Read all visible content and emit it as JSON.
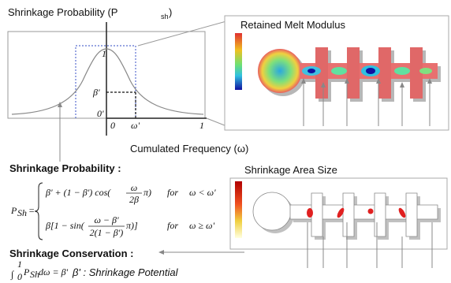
{
  "graph": {
    "title": "Shrinkage Probability (P",
    "title_sub": "sh",
    "title_close": ")",
    "y_top": "1",
    "y_beta": "β'",
    "y_zero": "0'",
    "x_zero": "0",
    "x_omega": "ω'",
    "x_one": "1",
    "x_label": "Cumulated Frequency (ω)"
  },
  "images": {
    "top_title": "Retained Melt Modulus",
    "bottom_title": "Shrinkage Area Size"
  },
  "probability": {
    "heading": "Shrinkage Probability :",
    "lhs": "P",
    "lhs_sub": "Sh",
    "eq": "=",
    "case1": {
      "expr": "β' + (1 − β') cos(",
      "frac_num": "ω",
      "frac_den": "2β",
      "pi": "π)",
      "cond_for": "for",
      "cond": "ω < ω'"
    },
    "case2": {
      "expr": "β[1 − sin(",
      "frac_num": "ω − β'",
      "frac_den": "2(1 − β')",
      "pi": "π)]",
      "cond_for": "for",
      "cond": "ω ≥ ω'"
    }
  },
  "conservation": {
    "heading": "Shrinkage Conservation :",
    "integral": "∫",
    "lower": "0",
    "upper": "1",
    "integrand": "P",
    "integrand_sub": "Sh",
    "rest": "dω = β'",
    "note": "β' : Shrinkage Potential"
  }
}
